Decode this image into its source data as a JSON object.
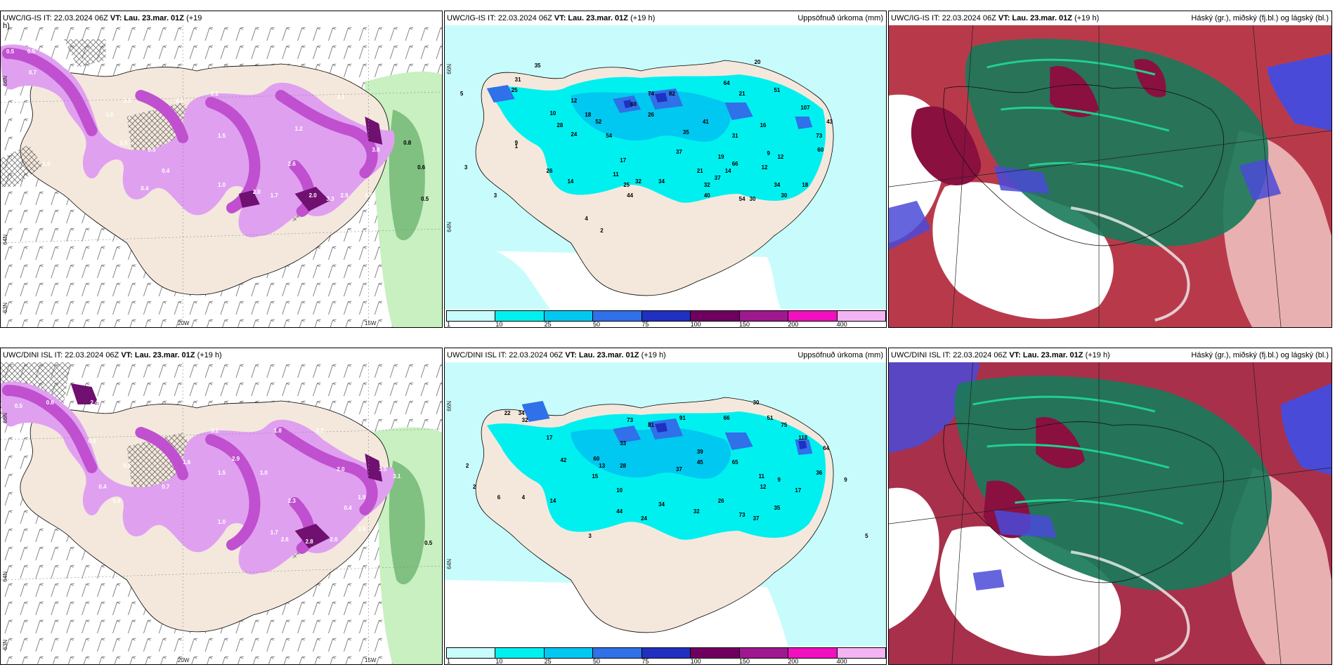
{
  "panels": {
    "p1": {
      "header_left_pre": "UWC/IG-IS IT: 22.03.2024 06Z",
      "header_left_bold": "VT: Lau. 23.mar. 01Z",
      "header_left_post": "(+19",
      "header_left_line2": "h)",
      "axis": {
        "lat66": "66N",
        "lat64": "64N",
        "lat63": "63N",
        "lon20": "20W",
        "lon15": "15W"
      }
    },
    "p2": {
      "header_left_pre": "UWC/IG-IS IT: 22.03.2024 06Z",
      "header_left_bold": "VT: Lau. 23.mar. 01Z",
      "header_left_post": "(+19 h)",
      "header_right": "Uppsöfnuð úrkoma (mm)",
      "axis": {
        "lat66": "66N",
        "lat64": "64N"
      }
    },
    "p3": {
      "header_left_pre": "UWC/IG-IS IT: 22.03.2024 06Z",
      "header_left_bold": "VT: Lau. 23.mar. 01Z",
      "header_left_post": "(+19 h)",
      "header_right": "Háský (gr.), miðský (fj.bl.) og lágský (bl.)"
    },
    "p4": {
      "header_left_pre": "UWC/DINI ISL IT: 22.03.2024 06Z",
      "header_left_bold": "VT: Lau. 23.mar. 01Z",
      "header_left_post": "(+19 h)",
      "axis": {
        "lat66": "66N",
        "lat64": "64N",
        "lat63": "63N",
        "lon20": "20W",
        "lon15": "15W"
      }
    },
    "p5": {
      "header_left_pre": "UWC/DINI ISL IT: 22.03.2024 06Z",
      "header_left_bold": "VT: Lau. 23.mar. 01Z",
      "header_left_post": "(+19 h)",
      "header_right": "Uppsöfnuð úrkoma (mm)",
      "axis": {
        "lat66": "66N",
        "lat64": "64N"
      }
    },
    "p6": {
      "header_left_pre": "UWC/DINI ISL IT: 22.03.2024 06Z",
      "header_left_bold": "VT: Lau. 23.mar. 01Z",
      "header_left_post": "(+19 h)",
      "header_right": "Háský (gr.), miðský (fj.bl.) og lágský (bl.)"
    }
  },
  "precip_legend": {
    "ticks": [
      "1",
      "10",
      "25",
      "50",
      "75",
      "100",
      "150",
      "200",
      "400"
    ],
    "colors": [
      "#c8fcfc",
      "#00f0f0",
      "#00c8f0",
      "#3070e8",
      "#2030c0",
      "#700060",
      "#a01890",
      "#f010c0",
      "#f4b4f4"
    ]
  },
  "snow_values_p1": [
    "0.5",
    "0.5",
    "0.7",
    "1.6",
    "2.3",
    "1.5",
    "2.1",
    "2.2",
    "3.1",
    "2.0",
    "1.7",
    "1.5",
    "0.5",
    "0.4",
    "1.0",
    "2.0",
    "3.3",
    "2.9",
    "2.6",
    "1.2",
    "0.5",
    "0.6",
    "0.5",
    "3.8",
    "1.6",
    "1.0",
    "0.4",
    "0.8"
  ],
  "snow_values_p4": [
    "0.5",
    "0.6",
    "2.4",
    "1.8",
    "2.2",
    "3.1",
    "2.9",
    "1.7",
    "2.6",
    "2.8",
    "2.0",
    "1.5",
    "0.7",
    "0.5",
    "2.3",
    "1.9",
    "3.1",
    "1.0",
    "0.4",
    "1.0",
    "0.5",
    "0.6",
    "0.4",
    "2.5",
    "3.5",
    "2.0",
    "1.6",
    "0.5"
  ],
  "precip_values_p2": [
    "31",
    "35",
    "25",
    "10",
    "12",
    "52",
    "60",
    "74",
    "82",
    "64",
    "20",
    "51",
    "107",
    "21",
    "5",
    "9",
    "54",
    "24",
    "26",
    "41",
    "35",
    "37",
    "19",
    "31",
    "9",
    "16",
    "12",
    "17",
    "11",
    "26",
    "37",
    "66",
    "54",
    "40",
    "30",
    "34",
    "12",
    "25",
    "32",
    "18",
    "60",
    "28",
    "18",
    "3",
    "14",
    "4",
    "2",
    "3",
    "1",
    "34",
    "14",
    "44",
    "21",
    "32",
    "73",
    "30",
    "43"
  ],
  "precip_values_p5": [
    "22",
    "34",
    "32",
    "17",
    "42",
    "60",
    "33",
    "73",
    "81",
    "91",
    "66",
    "51",
    "75",
    "118",
    "64",
    "30",
    "37",
    "39",
    "45",
    "65",
    "11",
    "9",
    "12",
    "17",
    "36",
    "9",
    "5",
    "10",
    "2",
    "6",
    "4",
    "14",
    "44",
    "34",
    "24",
    "32",
    "73",
    "37",
    "26",
    "35",
    "15",
    "13",
    "28",
    "3",
    "2"
  ],
  "colors": {
    "land": "#f4e8dc",
    "sea_light": "#c8fcfc",
    "snow_light": "#e0a0f0",
    "snow_mid": "#c050d0",
    "snow_dark": "#701070",
    "rain_light": "#c8f0c0",
    "rain_mid": "#80c080",
    "high_cloud": "#1a7a5a",
    "mid_cloud": "#8a1040",
    "low_cloud": "#4a4ad8"
  }
}
